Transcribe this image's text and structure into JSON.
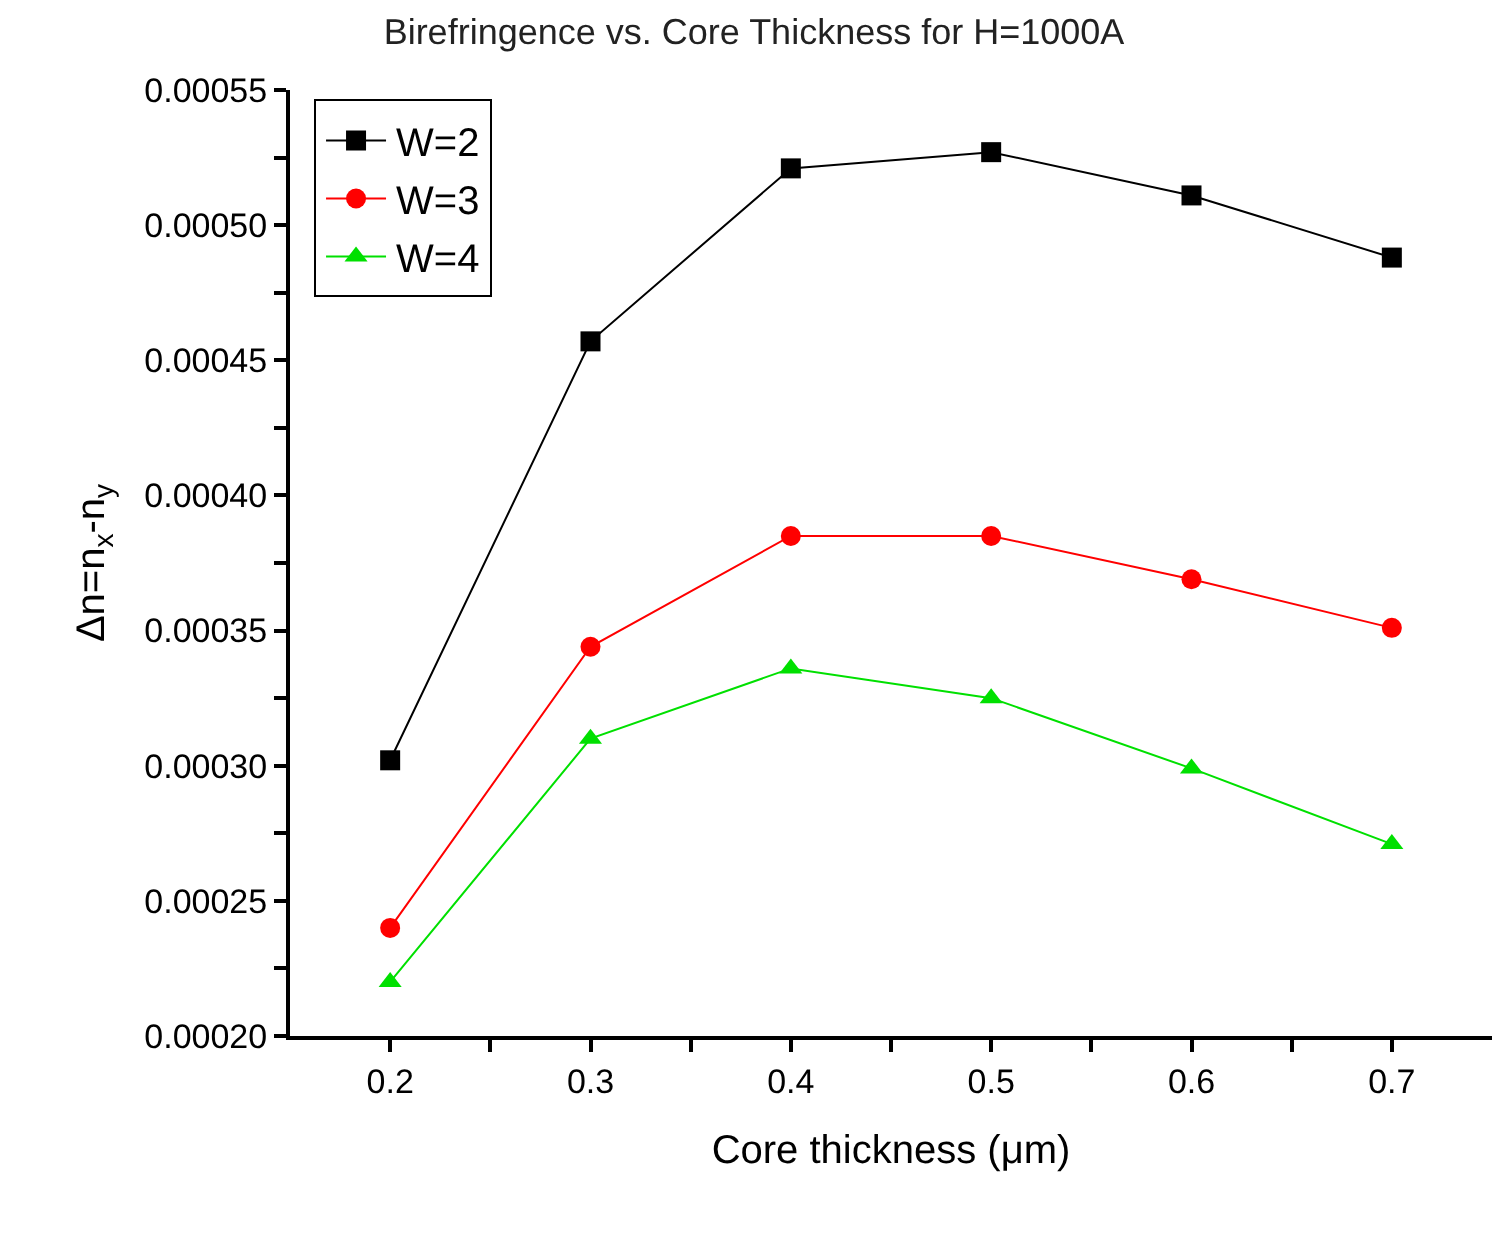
{
  "chart_data": {
    "type": "line",
    "title": "Birefringence vs. Core Thickness for H=1000A",
    "xlabel": "Core thickness (μm)",
    "ylabel": "Δn=n$_{x}$-n$_{y}$",
    "x": [
      0.2,
      0.3,
      0.4,
      0.5,
      0.6,
      0.7
    ],
    "series": [
      {
        "name": "W=2",
        "color": "#000000",
        "marker": "square",
        "values": [
          0.000302,
          0.000457,
          0.000521,
          0.000527,
          0.000511,
          0.000488
        ]
      },
      {
        "name": "W=3",
        "color": "#ff0000",
        "marker": "circle",
        "values": [
          0.00024,
          0.000344,
          0.000385,
          0.000385,
          0.000369,
          0.000351
        ]
      },
      {
        "name": "W=4",
        "color": "#00e000",
        "marker": "triangle",
        "values": [
          0.00022,
          0.00031,
          0.000336,
          0.000325,
          0.000299,
          0.000271
        ]
      }
    ],
    "xlim": [
      0.15,
      0.75
    ],
    "ylim": [
      0.0002,
      0.00055
    ],
    "xticks": [
      0.2,
      {
        "value": 0.25,
        "label": null
      },
      0.3,
      {
        "value": 0.35,
        "label": null
      },
      0.4,
      {
        "value": 0.45,
        "label": null
      },
      0.5,
      {
        "value": 0.55,
        "label": null
      },
      0.6,
      {
        "value": 0.65,
        "label": null
      },
      0.7
    ],
    "yticks": [
      {
        "value": 0.0002,
        "label": "0.00020"
      },
      {
        "value": 0.000225,
        "label": null
      },
      {
        "value": 0.00025,
        "label": "0.00025"
      },
      {
        "value": 0.000275,
        "label": null
      },
      {
        "value": 0.0003,
        "label": "0.00030"
      },
      {
        "value": 0.000325,
        "label": null
      },
      {
        "value": 0.00035,
        "label": "0.00035"
      },
      {
        "value": 0.000375,
        "label": null
      },
      {
        "value": 0.0004,
        "label": "0.00040"
      },
      {
        "value": 0.000425,
        "label": null
      },
      {
        "value": 0.00045,
        "label": "0.00045"
      },
      {
        "value": 0.000475,
        "label": null
      },
      {
        "value": 0.0005,
        "label": "0.00050"
      },
      {
        "value": 0.000525,
        "label": null
      },
      {
        "value": 0.00055,
        "label": "0.00055"
      }
    ],
    "grid": false,
    "legend": "top left",
    "line_style": "solid"
  }
}
